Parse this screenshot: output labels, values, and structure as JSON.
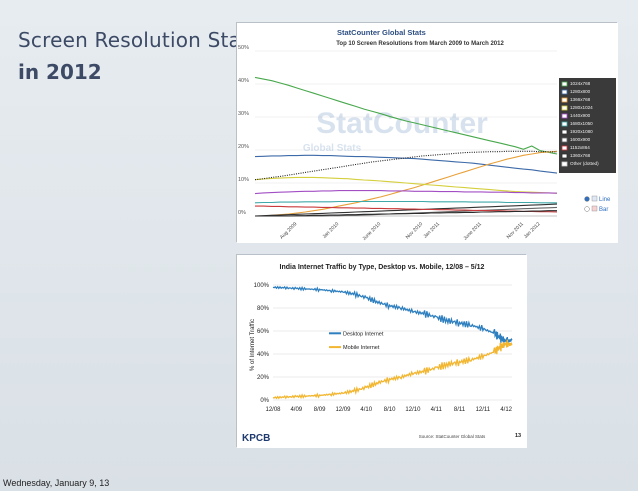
{
  "slide": {
    "title_line1": "Screen Resolution Stats",
    "title_line2": "in 2012",
    "footer_date": "Wednesday, January 9, 13"
  },
  "chart_data": [
    {
      "type": "line",
      "brand": "StatCounter Global Stats",
      "title": "Top 10 Screen Resolutions from March 2009 to March 2012",
      "watermark_line1": "StatCounter",
      "watermark_line2": "Global Stats",
      "ylim": [
        0,
        50
      ],
      "yticks": [
        "0%",
        "10%",
        "20%",
        "30%",
        "40%",
        "50%"
      ],
      "x_labels": [
        "Aug 2009",
        "Jan 2010",
        "June 2010",
        "Nov 2010",
        "Jan 2011",
        "June 2011",
        "Nov 2011",
        "Jan 2012"
      ],
      "x_label_pos": [
        5,
        10,
        15,
        20,
        22,
        27,
        32,
        34
      ],
      "x_count": 37,
      "legend_title": "",
      "series": [
        {
          "name": "1024x768",
          "color": "#48a84c",
          "values": [
            42,
            41.5,
            41,
            40.3,
            39.6,
            38.8,
            38,
            37.2,
            36.4,
            35.6,
            34.8,
            34,
            33.2,
            32.4,
            31.7,
            31,
            30.2,
            29.5,
            28.8,
            28.2,
            27.6,
            27,
            26.4,
            25.8,
            25.2,
            24.6,
            24,
            23.4,
            22.8,
            22.2,
            21.6,
            21,
            20.2,
            21.2,
            19.8,
            19.3,
            18.8
          ]
        },
        {
          "name": "1280x800",
          "color": "#3d6aa8",
          "values": [
            18,
            18.1,
            18.2,
            18.2,
            18.3,
            18.3,
            18.4,
            18.4,
            18.3,
            18.3,
            18.2,
            18.1,
            18,
            18,
            17.9,
            17.8,
            17.7,
            17.6,
            17.5,
            17.4,
            17.2,
            17,
            16.8,
            16.6,
            16.4,
            16.2,
            16,
            15.7,
            15.4,
            15.1,
            14.8,
            14.5,
            14.2,
            14,
            13.6,
            13.3,
            13
          ]
        },
        {
          "name": "1366x768",
          "color": "#e8a13a",
          "values": [
            0,
            0,
            0.2,
            0.4,
            0.6,
            0.9,
            1.2,
            1.6,
            2,
            2.5,
            3,
            3.5,
            4,
            4.6,
            5.2,
            5.8,
            6.5,
            7.2,
            7.9,
            8.6,
            9.4,
            10.2,
            11,
            11.8,
            12.6,
            13.4,
            14.2,
            15,
            15.8,
            16.5,
            17.2,
            17.8,
            18.4,
            18.8,
            19.2,
            19.4,
            19.6
          ]
        },
        {
          "name": "1280x1024",
          "color": "#d4cf3c",
          "values": [
            11,
            11.2,
            11.4,
            11.5,
            11.6,
            11.7,
            11.7,
            11.7,
            11.6,
            11.5,
            11.4,
            11.3,
            11.1,
            10.9,
            10.8,
            10.6,
            10.4,
            10.2,
            10,
            9.8,
            9.6,
            9.4,
            9.2,
            9,
            8.8,
            8.6,
            8.4,
            8.2,
            8,
            7.8,
            7.6,
            7.4,
            7.3,
            7.2,
            7.1,
            7,
            6.9
          ]
        },
        {
          "name": "1440x900",
          "color": "#a24fc4",
          "values": [
            6.8,
            7,
            7.1,
            7.2,
            7.3,
            7.4,
            7.5,
            7.5,
            7.6,
            7.6,
            7.7,
            7.7,
            7.7,
            7.7,
            7.7,
            7.7,
            7.6,
            7.6,
            7.6,
            7.5,
            7.5,
            7.5,
            7.4,
            7.4,
            7.4,
            7.3,
            7.3,
            7.3,
            7.2,
            7.2,
            7.2,
            7.1,
            7.1,
            7,
            7,
            7,
            6.9
          ]
        },
        {
          "name": "1680x1050",
          "color": "#40a8a8",
          "values": [
            4,
            4.1,
            4.1,
            4.2,
            4.2,
            4.2,
            4.3,
            4.3,
            4.3,
            4.3,
            4.4,
            4.4,
            4.4,
            4.4,
            4.4,
            4.4,
            4.4,
            4.4,
            4.4,
            4.4,
            4.4,
            4.3,
            4.3,
            4.3,
            4.3,
            4.3,
            4.2,
            4.2,
            4.2,
            4.2,
            4.1,
            4.1,
            4.1,
            4.1,
            4,
            4,
            4
          ]
        },
        {
          "name": "1920x1080",
          "color": "#333333",
          "values": [
            0,
            0.1,
            0.2,
            0.3,
            0.4,
            0.5,
            0.6,
            0.7,
            0.8,
            0.9,
            1,
            1.1,
            1.2,
            1.3,
            1.4,
            1.5,
            1.6,
            1.7,
            1.8,
            1.9,
            2,
            2.1,
            2.2,
            2.3,
            2.4,
            2.5,
            2.6,
            2.7,
            2.8,
            2.9,
            3,
            3.1,
            3.2,
            3.3,
            3.4,
            3.5,
            3.6
          ]
        },
        {
          "name": "1600x900",
          "color": "#666666",
          "values": [
            0,
            0,
            0,
            0,
            0,
            0,
            0,
            0,
            0,
            0.1,
            0.1,
            0.2,
            0.2,
            0.3,
            0.4,
            0.5,
            0.6,
            0.7,
            0.8,
            0.9,
            1,
            1.1,
            1.2,
            1.3,
            1.4,
            1.5,
            1.6,
            1.7,
            1.8,
            1.9,
            2,
            2.1,
            2.2,
            2.3,
            2.4,
            2.5,
            2.6
          ]
        },
        {
          "name": "1152x864",
          "color": "#c9383a",
          "values": [
            3,
            3,
            2.9,
            2.9,
            2.8,
            2.8,
            2.7,
            2.7,
            2.6,
            2.6,
            2.5,
            2.5,
            2.4,
            2.4,
            2.3,
            2.3,
            2.2,
            2.2,
            2.1,
            2.1,
            2,
            2,
            1.9,
            1.9,
            1.8,
            1.8,
            1.7,
            1.7,
            1.6,
            1.6,
            1.5,
            1.5,
            1.4,
            1.4,
            1.3,
            1.3,
            1.2
          ]
        },
        {
          "name": "1360x768",
          "color": "#2b2b2b",
          "values": [
            0,
            0,
            0,
            0,
            0,
            0.1,
            0.1,
            0.2,
            0.2,
            0.3,
            0.3,
            0.4,
            0.4,
            0.5,
            0.5,
            0.6,
            0.6,
            0.7,
            0.7,
            0.8,
            0.8,
            0.9,
            0.9,
            1,
            1,
            1.1,
            1.1,
            1.2,
            1.2,
            1.3,
            1.3,
            1.4,
            1.4,
            1.5,
            1.5,
            1.6,
            1.6
          ]
        },
        {
          "name": "Other (dotted)",
          "color": "#222222",
          "dotted": true,
          "values": [
            11,
            11.3,
            11.7,
            12,
            12.4,
            12.8,
            13.2,
            13.6,
            14,
            14.4,
            14.8,
            15.2,
            15.6,
            16,
            16.4,
            16.7,
            17,
            17.3,
            17.6,
            17.9,
            18.2,
            18.4,
            18.6,
            18.8,
            19,
            19.2,
            19.3,
            19.4,
            19.5,
            19.5,
            19.6,
            19.6,
            19.6,
            19.6,
            19.5,
            19.5,
            19.4
          ]
        }
      ],
      "toggles": [
        {
          "label": "Line",
          "selected": true
        },
        {
          "label": "Bar",
          "selected": false
        }
      ]
    },
    {
      "type": "line",
      "title": "India Internet Traffic by Type, Desktop vs. Mobile, 12/08 – 5/12",
      "ylabel": "% of Internet Traffic",
      "ylim": [
        0,
        100
      ],
      "yticks": [
        "0%",
        "20%",
        "40%",
        "60%",
        "80%",
        "100%"
      ],
      "x_labels": [
        "12/08",
        "4/09",
        "8/09",
        "12/09",
        "4/10",
        "8/10",
        "12/10",
        "4/11",
        "8/11",
        "12/11",
        "4/12"
      ],
      "x_range": [
        0,
        41
      ],
      "x_label_pos": [
        0,
        4,
        8,
        12,
        16,
        20,
        24,
        28,
        32,
        36,
        40
      ],
      "series": [
        {
          "name": "Desktop Internet",
          "color": "#2e7fbf",
          "x": [
            0,
            2,
            4,
            6,
            8,
            10,
            12,
            14,
            16,
            18,
            20,
            22,
            24,
            26,
            28,
            30,
            32,
            34,
            36,
            38,
            39,
            40,
            41
          ],
          "values": [
            98,
            97.5,
            97,
            96.5,
            96,
            95,
            94,
            92,
            89,
            85,
            82,
            80,
            77,
            75,
            72,
            69,
            67,
            65,
            62,
            58,
            54,
            51,
            52
          ]
        },
        {
          "name": "Mobile Internet",
          "color": "#f2b630",
          "x": [
            0,
            2,
            4,
            6,
            8,
            10,
            12,
            14,
            16,
            18,
            20,
            22,
            24,
            26,
            28,
            30,
            32,
            34,
            36,
            38,
            39,
            40,
            41
          ],
          "values": [
            2,
            2.5,
            3,
            3.5,
            4,
            5,
            6,
            8,
            11,
            15,
            18,
            20,
            23,
            25,
            28,
            31,
            33,
            35,
            38,
            42,
            46,
            49,
            48
          ]
        }
      ],
      "logo": "KPCB",
      "source": "Source: StatCounter Global Stats",
      "page_number": "13"
    }
  ]
}
